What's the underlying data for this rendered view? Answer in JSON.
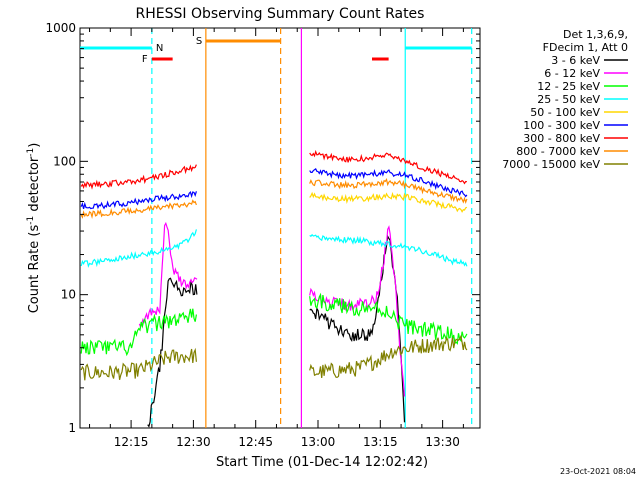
{
  "chart_data": {
    "type": "line",
    "title": "RHESSI Observing Summary Count Rates",
    "xlabel": "Start Time (01-Dec-14 12:02:42)",
    "ylabel_main": "Count Rate (s",
    "ylabel_sup1": "-1",
    "ylabel_mid": " detector",
    "ylabel_sup2": "-1",
    "ylabel_end": ")",
    "yscale": "log",
    "ylim": [
      1,
      1000
    ],
    "xlim": [
      "12:02:42",
      "13:39:00"
    ],
    "y_ticks": [
      "1",
      "10",
      "100",
      "1000"
    ],
    "x_ticks": [
      "12:15",
      "12:30",
      "12:45",
      "13:00",
      "13:15",
      "13:30"
    ],
    "legend_header": [
      "Det 1,3,6,9,",
      "FDecim 1, Att 0"
    ],
    "legend_position": "right",
    "series": [
      {
        "name": "3 - 6 keV",
        "color": "#000000",
        "segments": [
          {
            "x": [
              "12:19",
              "12:22",
              "12:24",
              "12:25",
              "12:27",
              "12:29",
              "12:31"
            ],
            "y": [
              1,
              3,
              14,
              12,
              11,
              11,
              11
            ]
          },
          {
            "x": [
              "12:58",
              "13:03",
              "13:08",
              "13:13",
              "13:17",
              "13:19",
              "13:21"
            ],
            "y": [
              8,
              6,
              5,
              5,
              30,
              10,
              1
            ]
          }
        ]
      },
      {
        "name": "6 - 12 keV",
        "color": "#ff00ff",
        "segments": [
          {
            "x": [
              "12:17",
              "12:22",
              "12:23",
              "12:24",
              "12:25",
              "12:27",
              "12:29",
              "12:31"
            ],
            "y": [
              6,
              8,
              35,
              28,
              16,
              13,
              12,
              12
            ]
          },
          {
            "x": [
              "12:58",
              "13:00",
              "13:05",
              "13:10",
              "13:14",
              "13:16",
              "13:17",
              "13:18",
              "13:20",
              "13:21"
            ],
            "y": [
              10,
              9,
              8.5,
              8.5,
              9,
              20,
              35,
              20,
              3,
              1.5
            ]
          }
        ]
      },
      {
        "name": "12 - 25 keV",
        "color": "#00ff00",
        "segments": [
          {
            "x": [
              "12:03",
              "12:10",
              "12:15",
              "12:17",
              "12:20",
              "12:25",
              "12:31"
            ],
            "y": [
              4,
              4,
              4,
              5.5,
              6,
              6.5,
              7
            ]
          },
          {
            "x": [
              "12:58",
              "13:03",
              "13:08",
              "13:13",
              "13:17",
              "13:20",
              "13:25",
              "13:32",
              "13:36"
            ],
            "y": [
              9,
              8.5,
              8,
              8,
              7.5,
              6,
              5.5,
              5,
              4.5
            ]
          }
        ]
      },
      {
        "name": "25 - 50 keV",
        "color": "#00ffff",
        "segments": [
          {
            "x": [
              "12:03",
              "12:10",
              "12:17",
              "12:22",
              "12:26",
              "12:29",
              "12:31"
            ],
            "y": [
              17,
              18,
              20,
              21,
              23,
              26,
              30
            ]
          },
          {
            "x": [
              "12:58",
              "13:05",
              "13:12",
              "13:17",
              "13:21",
              "13:26",
              "13:32",
              "13:36"
            ],
            "y": [
              27,
              26,
              25,
              24,
              23,
              21,
              18,
              17
            ]
          }
        ]
      },
      {
        "name": "50 - 100 keV",
        "color": "#ffd700",
        "segments": [
          {
            "x": [
              "12:58",
              "13:03",
              "13:08",
              "13:12",
              "13:17",
              "13:21",
              "13:26",
              "13:31",
              "13:36"
            ],
            "y": [
              55,
              53,
              52,
              53,
              55,
              54,
              50,
              46,
              43
            ]
          }
        ]
      },
      {
        "name": "100 - 300 keV",
        "color": "#0000ff",
        "segments": [
          {
            "x": [
              "12:03",
              "12:10",
              "12:17",
              "12:22",
              "12:27",
              "12:31"
            ],
            "y": [
              46,
              47,
              50,
              53,
              55,
              57
            ]
          },
          {
            "x": [
              "12:58",
              "13:03",
              "13:08",
              "13:12",
              "13:17",
              "13:21",
              "13:26",
              "13:31",
              "13:36"
            ],
            "y": [
              85,
              80,
              78,
              80,
              82,
              78,
              70,
              62,
              55
            ]
          }
        ]
      },
      {
        "name": "300 - 800 keV",
        "color": "#ff0000",
        "segments": [
          {
            "x": [
              "12:03",
              "12:10",
              "12:17",
              "12:22",
              "12:27",
              "12:31"
            ],
            "y": [
              66,
              68,
              72,
              78,
              85,
              92
            ]
          },
          {
            "x": [
              "12:58",
              "13:03",
              "13:08",
              "13:12",
              "13:17",
              "13:21",
              "13:26",
              "13:31",
              "13:36"
            ],
            "y": [
              115,
              108,
              102,
              106,
              112,
              100,
              88,
              78,
              70
            ]
          }
        ]
      },
      {
        "name": "800 - 7000 keV",
        "color": "#ff8c00",
        "segments": [
          {
            "x": [
              "12:03",
              "12:10",
              "12:17",
              "12:22",
              "12:27",
              "12:31"
            ],
            "y": [
              40,
              41,
              43,
              45,
              47,
              49
            ]
          },
          {
            "x": [
              "12:58",
              "13:03",
              "13:08",
              "13:12",
              "13:17",
              "13:21",
              "13:26",
              "13:31",
              "13:36"
            ],
            "y": [
              70,
              67,
              66,
              68,
              70,
              67,
              60,
              55,
              50
            ]
          }
        ]
      },
      {
        "name": "7000 - 15000 keV",
        "color": "#808000",
        "segments": [
          {
            "x": [
              "12:03",
              "12:10",
              "12:17",
              "12:24",
              "12:31"
            ],
            "y": [
              2.6,
              2.6,
              2.7,
              3.4,
              3.5
            ]
          },
          {
            "x": [
              "12:58",
              "13:05",
              "13:10",
              "13:14",
              "13:18",
              "13:24",
              "13:30",
              "13:36"
            ],
            "y": [
              2.6,
              2.7,
              2.8,
              3.2,
              3.8,
              4.1,
              4.3,
              4.4
            ]
          }
        ]
      }
    ],
    "annotations": {
      "night_bars": {
        "color": "#00ffff",
        "label": "N",
        "intervals": [
          [
            "12:02:42",
            "12:20"
          ],
          [
            "13:21",
            "13:37"
          ]
        ]
      },
      "saa_bar": {
        "color": "#ff8c00",
        "label": "S",
        "interval": [
          "12:33",
          "12:51"
        ]
      },
      "flare_bars": {
        "color": "#ff0000",
        "label": "F",
        "intervals": [
          [
            "12:20",
            "12:25"
          ],
          [
            "13:13",
            "13:17"
          ]
        ]
      },
      "vlines": [
        {
          "time": "12:20",
          "color": "#00ffff",
          "style": "dashed"
        },
        {
          "time": "12:33",
          "color": "#ff8c00",
          "style": "solid"
        },
        {
          "time": "12:51",
          "color": "#ff8c00",
          "style": "dashed"
        },
        {
          "time": "12:56",
          "color": "#ff00ff",
          "style": "solid"
        },
        {
          "time": "13:21",
          "color": "#00ffff",
          "style": "solid"
        },
        {
          "time": "13:37",
          "color": "#00ffff",
          "style": "dashed"
        }
      ]
    },
    "timestamp": "23-Oct-2021 08:04"
  }
}
